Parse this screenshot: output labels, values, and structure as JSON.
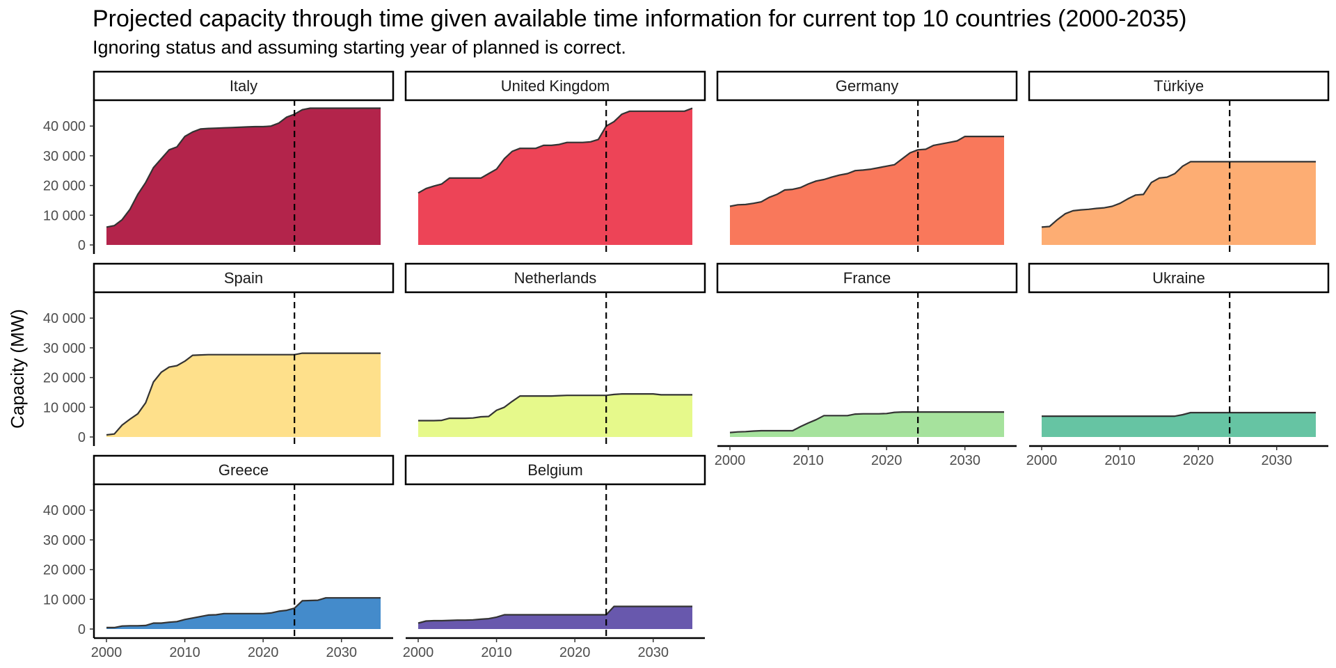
{
  "chart_data": {
    "type": "area",
    "title": "Projected capacity through time given available time information for current top 10 countries (2000-2035)",
    "subtitle": "Ignoring status and assuming starting year of planned is correct.",
    "ylabel": "Capacity (MW)",
    "xlabel": "",
    "xlim": [
      2000,
      2035
    ],
    "ylim": [
      0,
      48000
    ],
    "x_ticks": [
      "2000",
      "2010",
      "2020",
      "2030"
    ],
    "y_ticks": [
      "0",
      "10 000",
      "20 000",
      "30 000",
      "40 000"
    ],
    "reference_line_x": 2024,
    "grid": false,
    "x": [
      2000,
      2001,
      2002,
      2003,
      2004,
      2005,
      2006,
      2007,
      2008,
      2009,
      2010,
      2011,
      2012,
      2013,
      2014,
      2015,
      2016,
      2017,
      2018,
      2019,
      2020,
      2021,
      2022,
      2023,
      2024,
      2025,
      2026,
      2027,
      2028,
      2029,
      2030,
      2031,
      2032,
      2033,
      2034,
      2035
    ],
    "series": [
      {
        "name": "Italy",
        "color": "#b3244b",
        "values": [
          6000,
          6500,
          8500,
          12000,
          17000,
          21000,
          26000,
          29000,
          32000,
          33000,
          36500,
          38000,
          39000,
          39200,
          39300,
          39400,
          39500,
          39600,
          39700,
          39800,
          39800,
          40000,
          41000,
          43000,
          44000,
          45500,
          46000,
          46000,
          46000,
          46000,
          46000,
          46000,
          46000,
          46000,
          46000,
          46000
        ]
      },
      {
        "name": "United Kingdom",
        "color": "#ed4457",
        "values": [
          17500,
          19000,
          19800,
          20500,
          22500,
          22500,
          22500,
          22500,
          22500,
          24000,
          25500,
          29000,
          31500,
          32500,
          32500,
          32500,
          33500,
          33500,
          33800,
          34500,
          34500,
          34500,
          34700,
          35500,
          40000,
          41500,
          44000,
          45000,
          45000,
          45000,
          45000,
          45000,
          45000,
          45000,
          45000,
          46000
        ]
      },
      {
        "name": "Germany",
        "color": "#f9785b",
        "values": [
          13000,
          13500,
          13600,
          14000,
          14500,
          16000,
          17000,
          18500,
          18700,
          19300,
          20500,
          21500,
          22000,
          22800,
          23500,
          24000,
          25000,
          25200,
          25500,
          26000,
          26500,
          27000,
          29000,
          31000,
          32000,
          32200,
          33500,
          34000,
          34500,
          35000,
          36500,
          36500,
          36500,
          36500,
          36500,
          36500
        ]
      },
      {
        "name": "Türkiye",
        "color": "#fdad73",
        "values": [
          6000,
          6200,
          8500,
          10500,
          11500,
          11800,
          12000,
          12300,
          12500,
          13000,
          14000,
          15500,
          16800,
          17000,
          21000,
          22500,
          22800,
          24000,
          26500,
          28000,
          28000,
          28000,
          28000,
          28000,
          28000,
          28000,
          28000,
          28000,
          28000,
          28000,
          28000,
          28000,
          28000,
          28000,
          28000,
          28000
        ]
      },
      {
        "name": "Spain",
        "color": "#fee08b",
        "values": [
          700,
          1000,
          4000,
          6000,
          7800,
          11500,
          18500,
          21800,
          23500,
          24000,
          25500,
          27500,
          27600,
          27700,
          27700,
          27700,
          27700,
          27700,
          27700,
          27700,
          27700,
          27700,
          27700,
          27700,
          27700,
          28200,
          28200,
          28200,
          28200,
          28200,
          28200,
          28200,
          28200,
          28200,
          28200,
          28200
        ]
      },
      {
        "name": "Netherlands",
        "color": "#e6f98b",
        "values": [
          5500,
          5500,
          5500,
          5600,
          6300,
          6300,
          6300,
          6400,
          6800,
          6900,
          9000,
          10000,
          12000,
          13800,
          13800,
          13800,
          13800,
          13800,
          13900,
          14000,
          14000,
          14000,
          14000,
          14000,
          14000,
          14300,
          14500,
          14500,
          14500,
          14500,
          14500,
          14200,
          14200,
          14200,
          14200,
          14200
        ]
      },
      {
        "name": "France",
        "color": "#a6e29d",
        "values": [
          1500,
          1700,
          1800,
          2000,
          2100,
          2100,
          2100,
          2100,
          2100,
          3500,
          4700,
          5800,
          7200,
          7200,
          7200,
          7200,
          7700,
          7800,
          7800,
          7800,
          7900,
          8300,
          8400,
          8400,
          8400,
          8400,
          8400,
          8400,
          8400,
          8400,
          8400,
          8400,
          8400,
          8400,
          8400,
          8400
        ]
      },
      {
        "name": "Ukraine",
        "color": "#66c4a3",
        "values": [
          7000,
          7000,
          7000,
          7000,
          7000,
          7000,
          7000,
          7000,
          7000,
          7000,
          7000,
          7000,
          7000,
          7000,
          7000,
          7000,
          7000,
          7000,
          7500,
          8200,
          8200,
          8200,
          8200,
          8200,
          8200,
          8200,
          8200,
          8200,
          8200,
          8200,
          8200,
          8200,
          8200,
          8200,
          8200,
          8200
        ]
      },
      {
        "name": "Greece",
        "color": "#448bcb",
        "values": [
          500,
          500,
          1000,
          1100,
          1100,
          1200,
          2000,
          2000,
          2300,
          2500,
          3200,
          3700,
          4200,
          4700,
          4800,
          5200,
          5200,
          5200,
          5200,
          5200,
          5200,
          5400,
          6000,
          6300,
          7000,
          9500,
          9600,
          9700,
          10500,
          10500,
          10500,
          10500,
          10500,
          10500,
          10500,
          10500
        ]
      },
      {
        "name": "Belgium",
        "color": "#6858ad",
        "values": [
          2000,
          2700,
          2800,
          2800,
          2900,
          3000,
          3000,
          3100,
          3300,
          3500,
          4000,
          4800,
          4800,
          4800,
          4800,
          4800,
          4800,
          4800,
          4800,
          4800,
          4800,
          4800,
          4800,
          4800,
          4800,
          7600,
          7600,
          7600,
          7600,
          7600,
          7600,
          7600,
          7600,
          7600,
          7600,
          7600
        ]
      }
    ]
  }
}
